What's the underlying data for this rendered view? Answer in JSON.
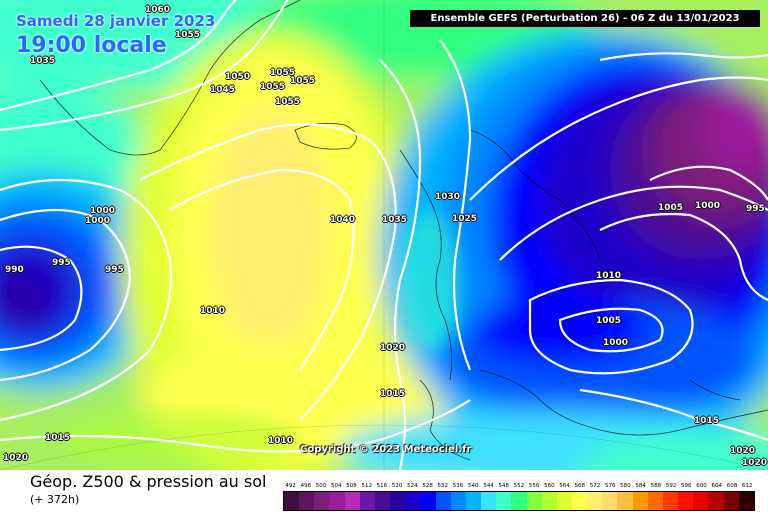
{
  "header": {
    "date": "Samedi 28 janvier 2023",
    "local_time": "19:00 locale",
    "run_info": "Ensemble GEFS  (Perturbation 26)  -  06 Z du 13/01/2023"
  },
  "copyright": "Copyright © 2023 Meteociel.fr",
  "footer": {
    "field_title": "Géop. Z500 & pression au sol",
    "lead_time": "(+ 372h)"
  },
  "isobars": [
    "1060",
    "1055",
    "1035",
    "1050",
    "1045",
    "1055",
    "1055",
    "1055",
    "1055",
    "1040",
    "1030",
    "1035",
    "1025",
    "1000",
    "1000",
    "995",
    "995",
    "990",
    "1010",
    "1020",
    "1015",
    "1015",
    "1020",
    "1010",
    "1005",
    "1000",
    "995",
    "1010",
    "1005",
    "1000",
    "1015",
    "1020",
    "1020"
  ],
  "legend": {
    "labels": [
      "492",
      "496",
      "500",
      "504",
      "508",
      "512",
      "516",
      "520",
      "524",
      "528",
      "532",
      "536",
      "540",
      "544",
      "548",
      "552",
      "556",
      "560",
      "564",
      "568",
      "572",
      "576",
      "580",
      "584",
      "588",
      "592",
      "596",
      "600",
      "604",
      "608",
      "612"
    ],
    "colors": [
      "#3d0f3d",
      "#5c165c",
      "#7a1f7a",
      "#991f99",
      "#b52db5",
      "#6a16a8",
      "#4a0c96",
      "#2a00a0",
      "#1a00c8",
      "#0000ff",
      "#0055ff",
      "#0088ff",
      "#00b4ff",
      "#40e0ff",
      "#40ffcc",
      "#30ff80",
      "#80ff40",
      "#b0ff30",
      "#dfff30",
      "#ffff50",
      "#ffee70",
      "#ffdd70",
      "#ffc040",
      "#ff9a00",
      "#ff6a00",
      "#ff3a00",
      "#ff1000",
      "#e80000",
      "#b40000",
      "#780000",
      "#300000"
    ]
  }
}
